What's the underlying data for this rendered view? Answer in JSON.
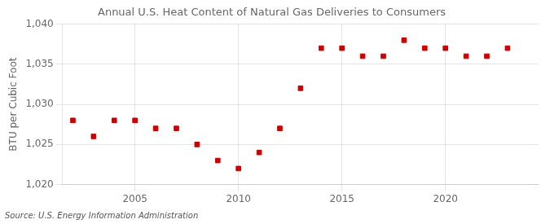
{
  "chart_data": {
    "type": "scatter",
    "title": "Annual U.S. Heat Content of Natural Gas Deliveries to Consumers",
    "ylabel": "BTU per Cubic Foot",
    "annotations": [
      "Source: U.S. Energy Information Administration"
    ],
    "x": [
      2002,
      2003,
      2004,
      2005,
      2006,
      2007,
      2008,
      2009,
      2010,
      2011,
      2012,
      2013,
      2014,
      2015,
      2016,
      2017,
      2018,
      2019,
      2020,
      2021,
      2022,
      2023
    ],
    "values": [
      1028,
      1026,
      1028,
      1028,
      1027,
      1027,
      1025,
      1023,
      1022,
      1024,
      1027,
      1032,
      1037,
      1037,
      1036,
      1036,
      1038,
      1037,
      1037,
      1036,
      1036,
      1037
    ],
    "color": "#cc0000",
    "marker": "square",
    "xlim": [
      2001.5,
      2024.5
    ],
    "ylim": [
      1020,
      1040
    ],
    "xticks": [
      2005,
      2010,
      2015,
      2020
    ],
    "yticks": [
      {
        "value": 1020,
        "label": "1,020"
      },
      {
        "value": 1025,
        "label": "1,025"
      },
      {
        "value": 1030,
        "label": "1,030"
      },
      {
        "value": 1035,
        "label": "1,035"
      },
      {
        "value": 1040,
        "label": "1,040"
      }
    ],
    "grid": true
  }
}
